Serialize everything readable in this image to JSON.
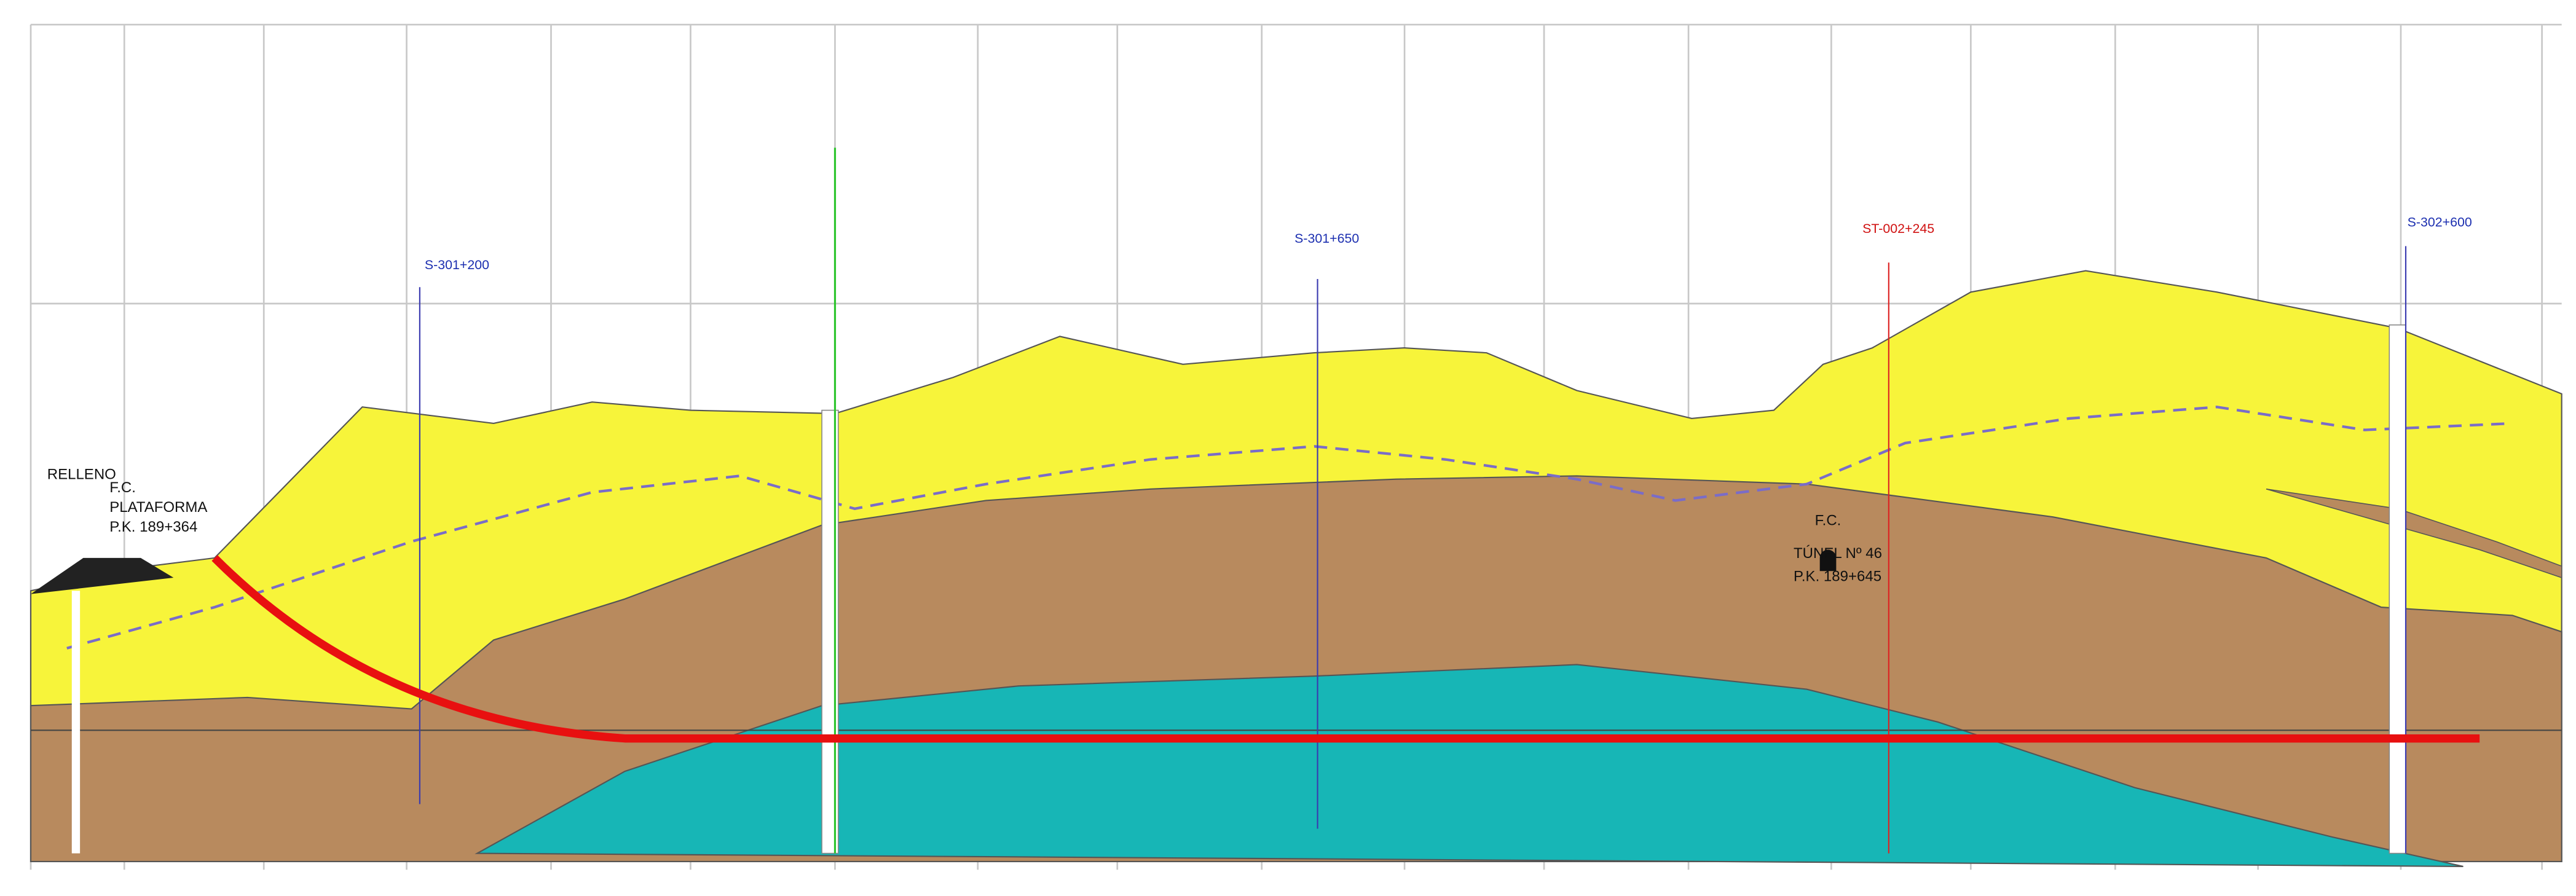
{
  "platform": {
    "fill": "RELLENO",
    "lines": [
      "F.C.",
      "PLATAFORMA",
      "P.K. 189+364"
    ]
  },
  "tunnel": {
    "lines": [
      "F.C.",
      "TÚNEL Nº 46",
      "P.K. 189+645"
    ]
  },
  "boreholes": [
    "S-301+200",
    "S-301+650",
    "ST-002+245",
    "S-302+600"
  ]
}
